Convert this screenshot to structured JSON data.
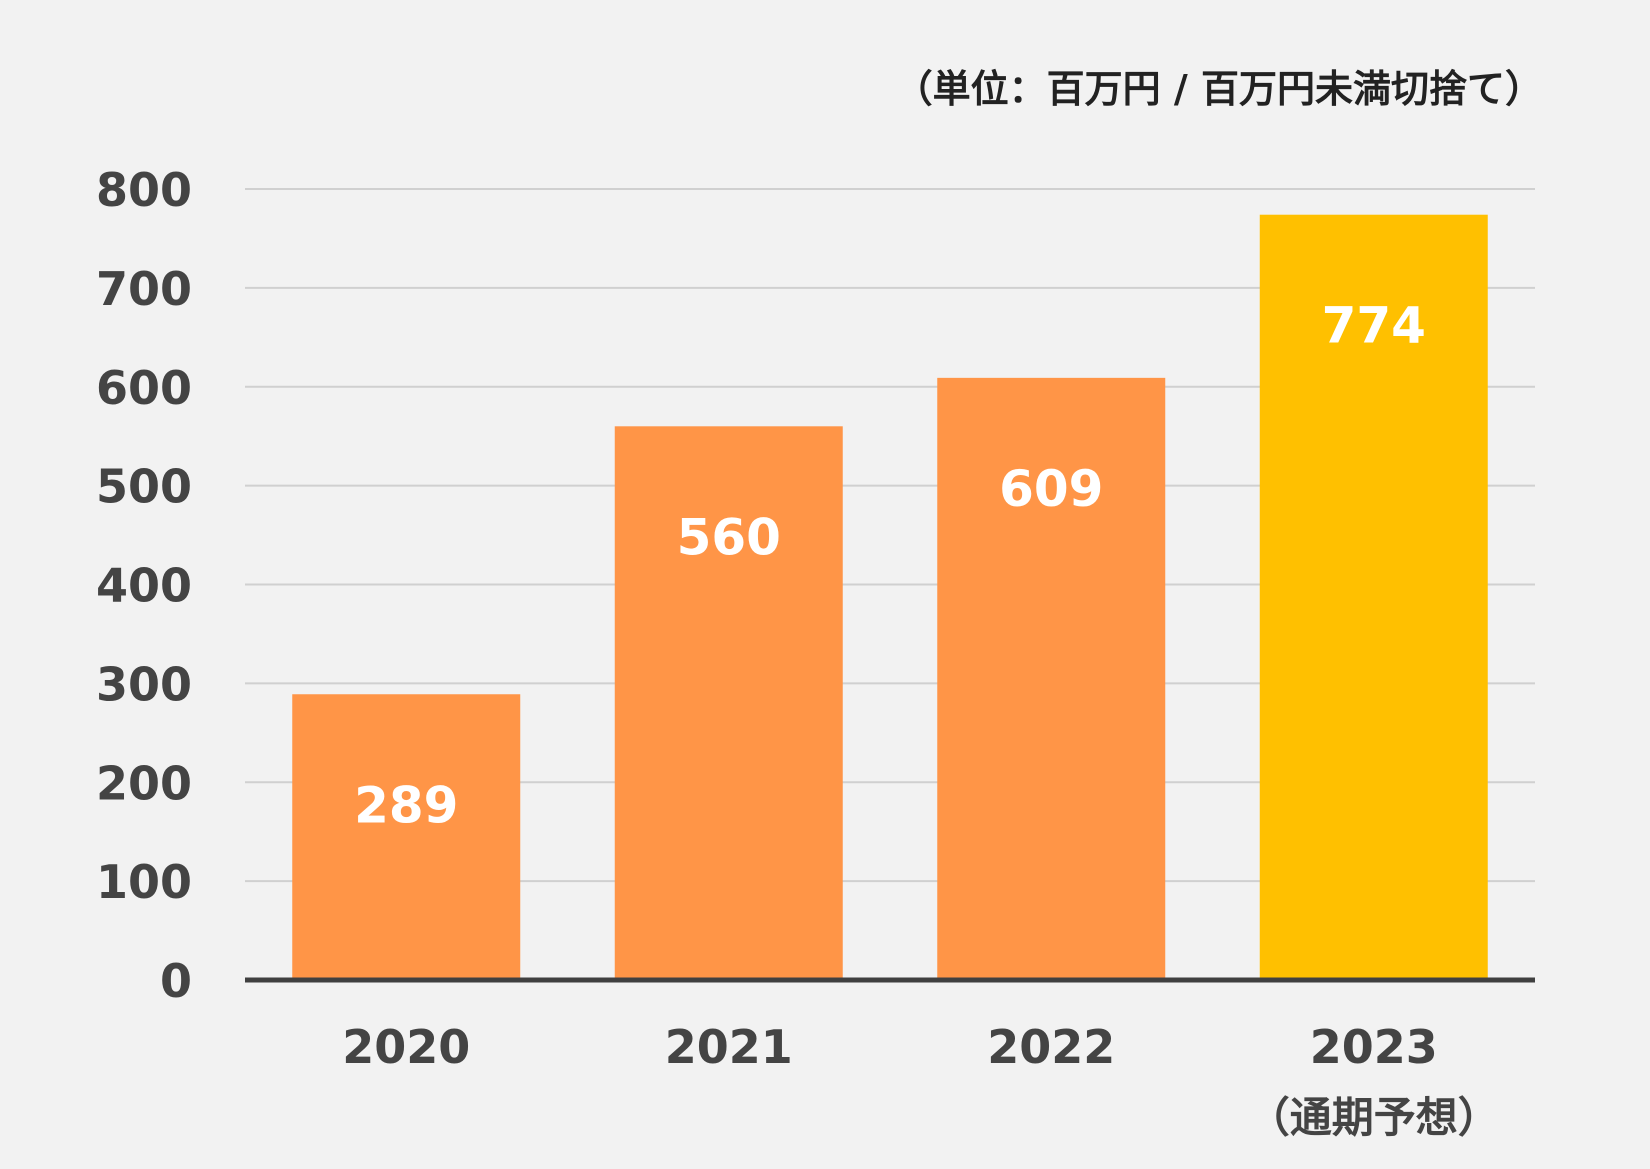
{
  "unit_note": "（単位：百万円 / 百万円未満切捨て）",
  "colors": {
    "background": "#f2f2f2",
    "bar_actual": "#ff9547",
    "bar_forecast": "#ffc000",
    "gridline": "#d0d0d0",
    "axis": "#404040",
    "text": "#444444",
    "value_text": "#ffffff"
  },
  "chart_data": {
    "type": "bar",
    "categories": [
      "2020",
      "2021",
      "2022",
      "2023"
    ],
    "category_notes": [
      "",
      "",
      "",
      "（通期予想）"
    ],
    "values": [
      289,
      560,
      609,
      774
    ],
    "data_labels": [
      "289",
      "560",
      "609",
      "774"
    ],
    "bar_kinds": [
      "actual",
      "actual",
      "actual",
      "forecast"
    ],
    "y_ticks": [
      "0",
      "100",
      "200",
      "300",
      "400",
      "500",
      "600",
      "700",
      "800"
    ],
    "ylim": [
      0,
      800
    ],
    "grid": true,
    "legend": "none"
  }
}
